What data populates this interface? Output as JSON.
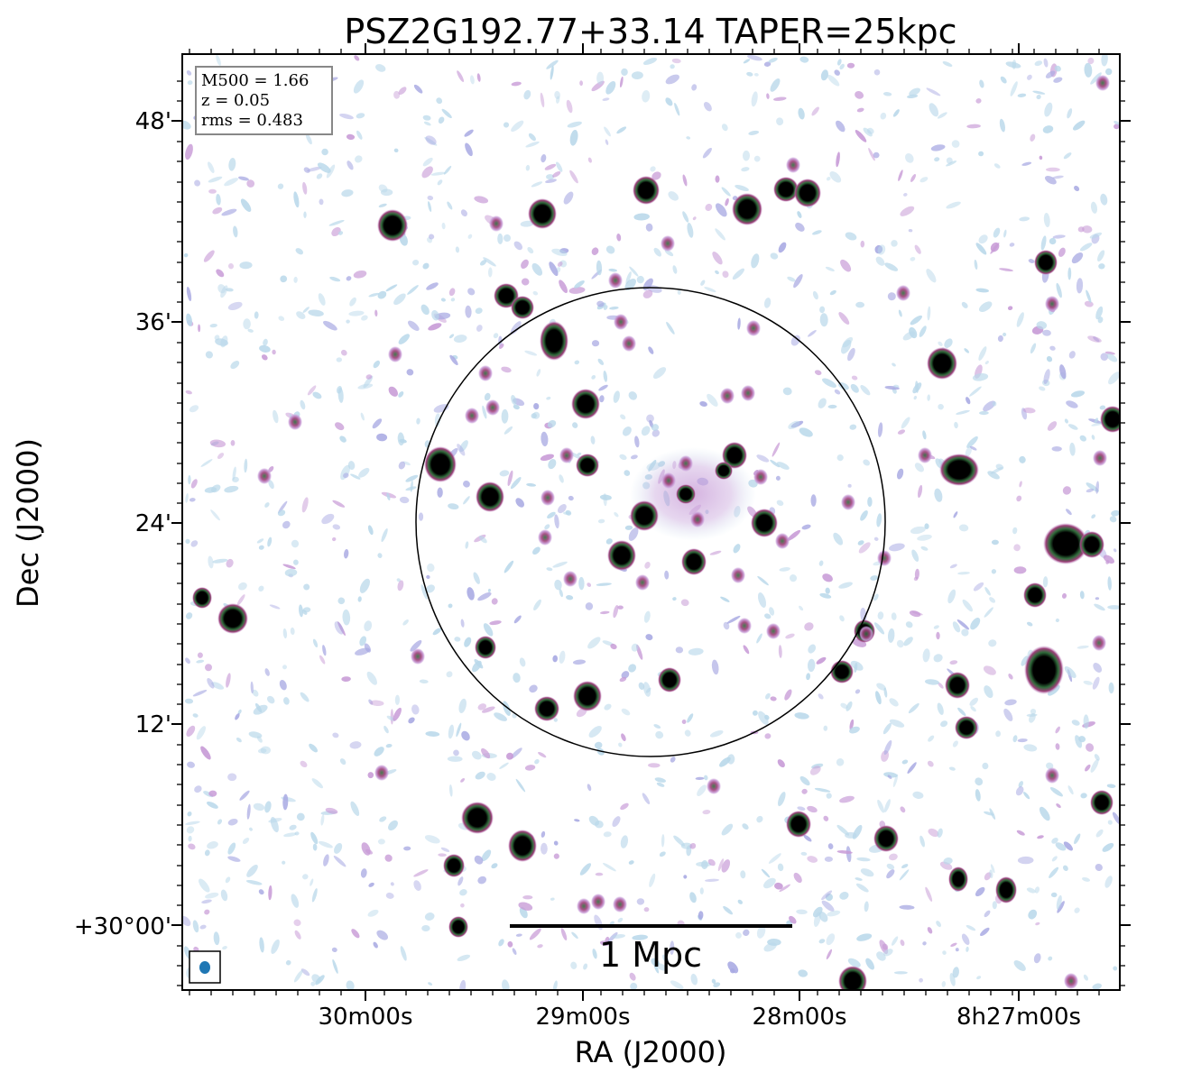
{
  "chart_data": {
    "type": "radio map",
    "title": "PSZ2G192.77+33.14 TAPER=25kpc",
    "xlabel": "RA (J2000)",
    "ylabel": "Dec (J2000)",
    "x_ticks": [
      "30m00s",
      "29m00s",
      "28m00s",
      "8h27m00s"
    ],
    "y_ticks": [
      "48'",
      "36'",
      "24'",
      "12'",
      "+30°00'"
    ],
    "info_box": {
      "line1": "M500 = 1.66",
      "line2": "z = 0.05",
      "line3": "rms = 0.483"
    },
    "scale_bar": {
      "label": "1 Mpc"
    },
    "colors": {
      "frame": "#000000",
      "noise_light": "#b9d8ea",
      "noise_mid": "#a7a8e2",
      "halo": "#c79ad6",
      "source_ring": "#9e3f7a",
      "source_mid": "#2f6b3a",
      "source_core": "#000000",
      "beam": "#1f77b4"
    }
  }
}
